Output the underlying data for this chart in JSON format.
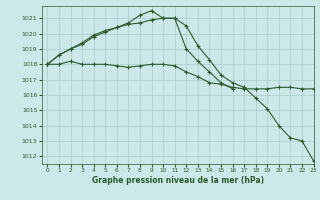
{
  "title": "Graphe pression niveau de la mer (hPa)",
  "background_color": "#cce8e8",
  "grid_color": "#aacccc",
  "line_color": "#2d5a2d",
  "xlim": [
    -0.5,
    23
  ],
  "ylim": [
    1011.5,
    1021.8
  ],
  "yticks": [
    1012,
    1013,
    1014,
    1015,
    1016,
    1017,
    1018,
    1019,
    1020,
    1021
  ],
  "xticks": [
    0,
    1,
    2,
    3,
    4,
    5,
    6,
    7,
    8,
    9,
    10,
    11,
    12,
    13,
    14,
    15,
    16,
    17,
    18,
    19,
    20,
    21,
    22,
    23
  ],
  "series": [
    {
      "x": [
        0,
        1,
        2,
        3,
        4,
        5,
        6,
        7,
        8,
        9,
        10,
        11,
        12,
        13,
        14,
        15,
        16,
        17,
        18,
        19,
        20,
        21,
        22,
        23
      ],
      "y": [
        1018.0,
        1018.6,
        1019.0,
        1019.3,
        1019.8,
        1020.1,
        1020.4,
        1020.7,
        1021.2,
        1021.5,
        1021.0,
        1021.0,
        1019.0,
        1018.2,
        1017.5,
        1016.8,
        1016.4,
        null,
        null,
        null,
        null,
        null,
        null,
        null
      ]
    },
    {
      "x": [
        0,
        1,
        2,
        3,
        4,
        5,
        6,
        7,
        8,
        9,
        10,
        11,
        12,
        13,
        14,
        15,
        16,
        17,
        18,
        19,
        20,
        21,
        22,
        23
      ],
      "y": [
        1018.0,
        1018.6,
        1019.0,
        1019.4,
        1019.9,
        1020.2,
        1020.4,
        1020.6,
        1020.7,
        1020.9,
        1021.0,
        1021.0,
        1020.5,
        1019.2,
        1018.3,
        1017.3,
        1016.8,
        1016.5,
        1015.8,
        1015.1,
        1014.0,
        1013.2,
        1013.0,
        1011.7
      ]
    },
    {
      "x": [
        0,
        1,
        2,
        3,
        4,
        5,
        6,
        7,
        8,
        9,
        10,
        11,
        12,
        13,
        14,
        15,
        16,
        17,
        18,
        19,
        20,
        21,
        22,
        23
      ],
      "y": [
        1018.0,
        1018.0,
        1018.2,
        1018.0,
        1018.0,
        1018.0,
        1017.9,
        1017.8,
        1017.9,
        1018.0,
        1018.0,
        1017.9,
        1017.5,
        1017.2,
        1016.8,
        1016.7,
        1016.5,
        1016.4,
        1016.4,
        1016.4,
        1016.5,
        1016.5,
        1016.4,
        1016.4
      ]
    }
  ]
}
